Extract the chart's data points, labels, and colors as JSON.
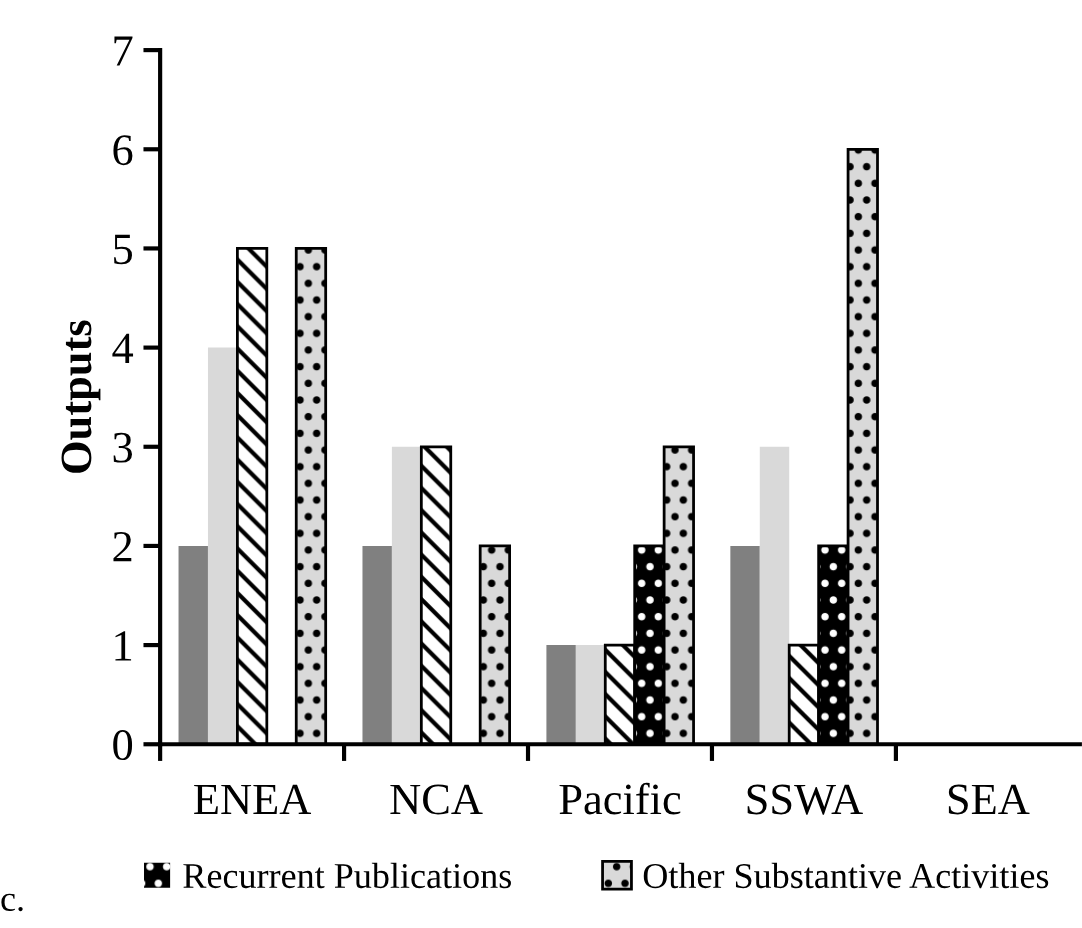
{
  "chart_data": {
    "type": "bar",
    "ylabel": "Outputs",
    "categories": [
      "ENEA",
      "NCA",
      "Pacific",
      "SSWA",
      "SEA"
    ],
    "series": [
      {
        "color": "#808080",
        "values": [
          2,
          2,
          1,
          2,
          null
        ]
      },
      {
        "color": "#d9d9d9",
        "values": [
          4,
          3,
          1,
          3,
          null
        ]
      },
      {
        "color": "#ffffff",
        "values": [
          5,
          3,
          1,
          1,
          null
        ]
      },
      {
        "name": "Recurrent Publications",
        "color": "#000000",
        "values": [
          null,
          null,
          2,
          2,
          null
        ]
      },
      {
        "name": "Other Substantive Activities",
        "color": "#d9d9d9",
        "values": [
          5,
          2,
          3,
          6,
          null
        ]
      }
    ],
    "ylim": [
      0,
      7
    ],
    "yticks": [
      0,
      1,
      2,
      3,
      4,
      5,
      6,
      7
    ],
    "grid": false,
    "legend": "bottom",
    "annotations": [
      "c."
    ]
  }
}
